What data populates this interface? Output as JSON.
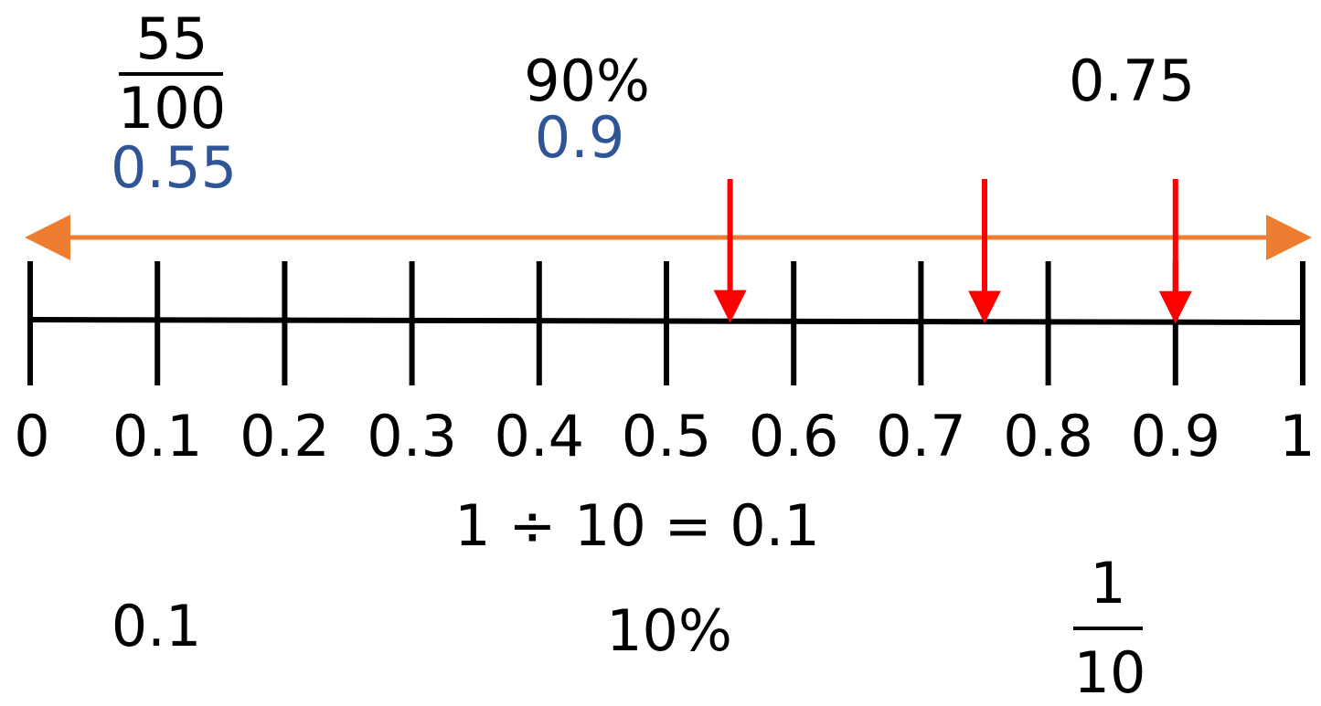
{
  "top_labels": {
    "fraction_55": {
      "numerator": "55",
      "denominator": "100"
    },
    "decimal_055": "0.55",
    "percent_90": "90%",
    "decimal_09": "0.9",
    "decimal_075": "0.75"
  },
  "number_line": {
    "min": 0,
    "max": 1,
    "tick_labels": [
      "0",
      "0.1",
      "0.2",
      "0.3",
      "0.4",
      "0.5",
      "0.6",
      "0.7",
      "0.8",
      "0.9",
      "1"
    ],
    "marked_values": [
      0.55,
      0.75,
      0.9
    ],
    "colors": {
      "line": "#000000",
      "double_arrow": "#ed7d31",
      "markers": "#ff0000",
      "decimal_text": "#2f5597"
    }
  },
  "equation": "1 ÷ 10 = 0.1",
  "bottom_labels": {
    "decimal": "0.1",
    "percent": "10%",
    "fraction": {
      "numerator": "1",
      "denominator": "10"
    }
  }
}
